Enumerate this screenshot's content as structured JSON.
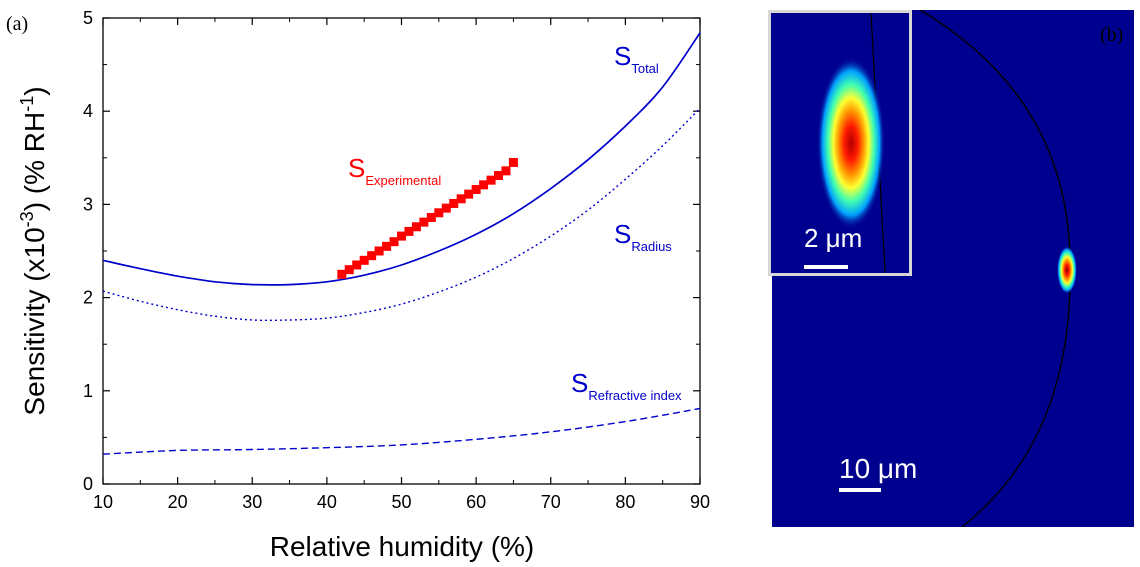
{
  "panel_a": {
    "label": "(a)",
    "chart_data": {
      "type": "line",
      "xlabel": "Relative humidity (%)",
      "ylabel": "Sensitivity (x10^-3) (% RH^-1)",
      "ylabel_parts": {
        "pre": "Sensitivity (x10",
        "sup1": "-3",
        "mid": ") (% RH",
        "sup2": "-1",
        "post": ")"
      },
      "xlim": [
        10,
        90
      ],
      "ylim": [
        0,
        5
      ],
      "xticks": [
        10,
        20,
        30,
        40,
        50,
        60,
        70,
        80,
        90
      ],
      "yticks": [
        0,
        1,
        2,
        3,
        4,
        5
      ],
      "grid": false,
      "series": [
        {
          "name": "S_Total",
          "label_main": "S",
          "label_sub": "Total",
          "style": "solid",
          "color": "#0000cc",
          "x": [
            10,
            15,
            20,
            25,
            30,
            35,
            40,
            45,
            50,
            55,
            60,
            65,
            70,
            75,
            80,
            85,
            90
          ],
          "y": [
            2.4,
            2.31,
            2.23,
            2.17,
            2.14,
            2.14,
            2.17,
            2.24,
            2.35,
            2.5,
            2.68,
            2.9,
            3.17,
            3.48,
            3.84,
            4.26,
            4.84
          ]
        },
        {
          "name": "S_Radius",
          "label_main": "S",
          "label_sub": "Radius",
          "style": "dotted",
          "color": "#0000cc",
          "x": [
            10,
            15,
            20,
            25,
            30,
            35,
            40,
            45,
            50,
            55,
            60,
            65,
            70,
            75,
            80,
            85,
            90
          ],
          "y": [
            2.07,
            1.96,
            1.87,
            1.8,
            1.76,
            1.76,
            1.78,
            1.84,
            1.93,
            2.06,
            2.22,
            2.42,
            2.66,
            2.94,
            3.27,
            3.63,
            4.03
          ]
        },
        {
          "name": "S_Refractive index",
          "label_main": "S",
          "label_sub": "Refractive index",
          "style": "dashed",
          "color": "#0000cc",
          "x": [
            10,
            20,
            30,
            40,
            50,
            60,
            70,
            80,
            90
          ],
          "y": [
            0.32,
            0.36,
            0.37,
            0.39,
            0.42,
            0.48,
            0.56,
            0.67,
            0.81
          ]
        },
        {
          "name": "S_Experimental",
          "label_main": "S",
          "label_sub": "Experimental",
          "style": "markers",
          "color": "#ff0000",
          "x": [
            42,
            43,
            44,
            45,
            46,
            47,
            48,
            49,
            50,
            51,
            52,
            53,
            54,
            55,
            56,
            57,
            58,
            59,
            60,
            61,
            62,
            63,
            64,
            65
          ],
          "y": [
            2.25,
            2.3,
            2.35,
            2.4,
            2.45,
            2.5,
            2.55,
            2.6,
            2.66,
            2.71,
            2.76,
            2.81,
            2.86,
            2.91,
            2.96,
            3.01,
            3.06,
            3.11,
            3.16,
            3.21,
            3.26,
            3.31,
            3.36,
            3.45
          ]
        }
      ]
    }
  },
  "panel_b": {
    "label": "(b)",
    "inset_scale_label": "2 μm",
    "main_scale_label": "10 μm",
    "colors": {
      "background": "#00008f",
      "hot": "#cc0000",
      "border": "#d6d6d6"
    }
  }
}
